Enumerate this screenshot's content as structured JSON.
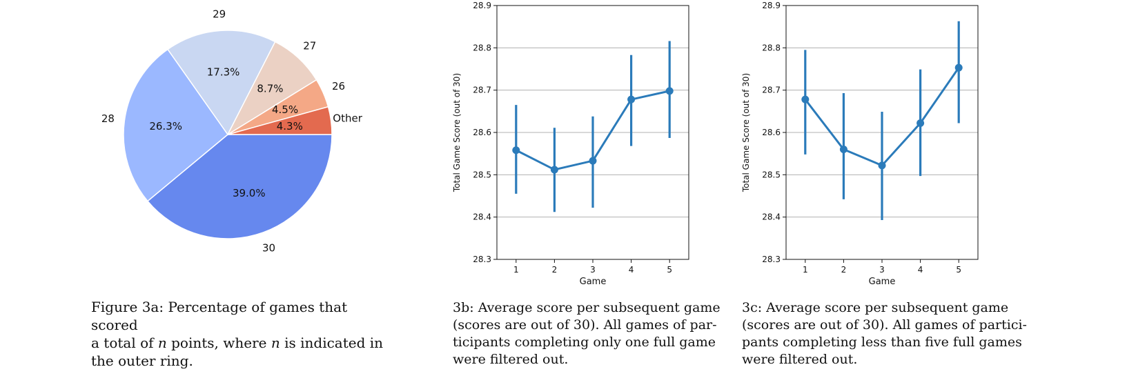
{
  "colors": {
    "pie": [
      "#6688ee",
      "#9bb8ff",
      "#c9d7f2",
      "#ebd1c4",
      "#f4a886",
      "#e36a4f"
    ],
    "line": "#2b7bba",
    "grid": "#b0b0b0"
  },
  "chart_data": [
    {
      "type": "pie",
      "title": "",
      "slices": [
        {
          "label": "30",
          "value": 39.0,
          "pct_label": "39.0%"
        },
        {
          "label": "28",
          "value": 26.3,
          "pct_label": "26.3%"
        },
        {
          "label": "29",
          "value": 17.3,
          "pct_label": "17.3%"
        },
        {
          "label": "27",
          "value": 8.7,
          "pct_label": "8.7%"
        },
        {
          "label": "26",
          "value": 4.5,
          "pct_label": "4.5%"
        },
        {
          "label": "Other",
          "value": 4.3,
          "pct_label": "4.3%"
        }
      ],
      "start_angle": "3 o'clock",
      "direction": "clockwise"
    },
    {
      "type": "line",
      "xlabel": "Game",
      "ylabel": "Total Game Score (out of 30)",
      "x": [
        1,
        2,
        3,
        4,
        5
      ],
      "y": [
        28.558,
        28.512,
        28.533,
        28.678,
        28.698
      ],
      "err_low": [
        28.455,
        28.412,
        28.422,
        28.568,
        28.587
      ],
      "err_high": [
        28.665,
        28.611,
        28.638,
        28.783,
        28.816
      ],
      "xlim": [
        0.5,
        5.5
      ],
      "ylim": [
        28.3,
        28.9
      ],
      "yticks": [
        "28.3",
        "28.4",
        "28.5",
        "28.6",
        "28.7",
        "28.8",
        "28.9"
      ],
      "xticks": [
        "1",
        "2",
        "3",
        "4",
        "5"
      ],
      "grid": "horizontal"
    },
    {
      "type": "line",
      "xlabel": "Game",
      "ylabel": "Total Game Score (out of 30)",
      "x": [
        1,
        2,
        3,
        4,
        5
      ],
      "y": [
        28.678,
        28.56,
        28.522,
        28.622,
        28.753
      ],
      "err_low": [
        28.548,
        28.442,
        28.393,
        28.497,
        28.622
      ],
      "err_high": [
        28.795,
        28.693,
        28.649,
        28.749,
        28.863
      ],
      "xlim": [
        0.5,
        5.5
      ],
      "ylim": [
        28.3,
        28.9
      ],
      "yticks": [
        "28.3",
        "28.4",
        "28.5",
        "28.6",
        "28.7",
        "28.8",
        "28.9"
      ],
      "xticks": [
        "1",
        "2",
        "3",
        "4",
        "5"
      ],
      "grid": "horizontal"
    }
  ],
  "captions": {
    "fig3a": {
      "line1": "Figure 3a:  Percentage of games that scored",
      "line2_pre": "a total of ",
      "line2_var": "n",
      "line2_mid": " points, where ",
      "line2_var2": "n",
      "line2_post": " is indicated in",
      "line3": "the outer ring."
    },
    "fig3b": {
      "line1": "3b: Average score per subsequent game",
      "line2": "(scores are out of 30).  All games of par-",
      "line3": "ticipants completing only one full game",
      "line4": "were filtered out."
    },
    "fig3c": {
      "line1": "3c: Average score per subsequent game",
      "line2": "(scores are out of 30).  All games of partici-",
      "line3": "pants completing less than five full games",
      "line4": "were filtered out."
    }
  }
}
